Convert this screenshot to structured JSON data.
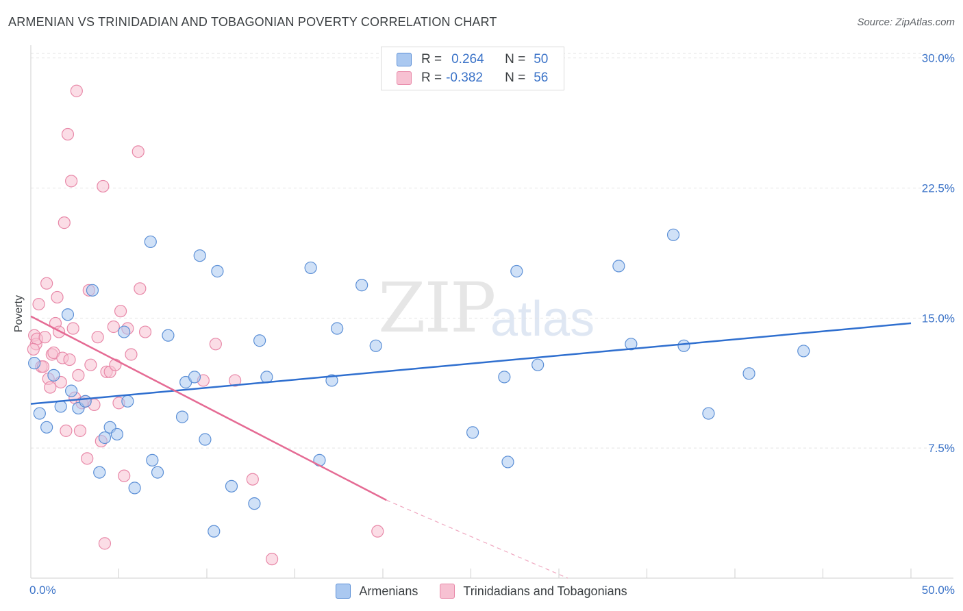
{
  "header": {
    "title": "ARMENIAN VS TRINIDADIAN AND TOBAGONIAN POVERTY CORRELATION CHART",
    "source": "Source: ZipAtlas.com"
  },
  "watermark": {
    "zip": "ZIP",
    "atlas": "atlas"
  },
  "legend": {
    "rows": [
      {
        "r_label": "R =",
        "r_value": "0.264",
        "n_label": "N =",
        "n_value": "50"
      },
      {
        "r_label": "R =",
        "r_value": "-0.382",
        "n_label": "N =",
        "n_value": "56"
      }
    ]
  },
  "bottom_legend": {
    "items": [
      {
        "label": "Armenians"
      },
      {
        "label": "Trinidadians and Tobagonians"
      }
    ]
  },
  "chart_data": {
    "type": "scatter",
    "title": "ARMENIAN VS TRINIDADIAN AND TOBAGONIAN POVERTY CORRELATION CHART",
    "xlabel": "",
    "ylabel": "Poverty",
    "xlim": [
      0,
      50
    ],
    "ylim": [
      0,
      30.5
    ],
    "x_tick_labels": [
      "0.0%",
      "50.0%"
    ],
    "y_ticks": [
      7.5,
      15.0,
      22.5,
      30.0
    ],
    "y_tick_labels": [
      "7.5%",
      "15.0%",
      "22.5%",
      "30.0%"
    ],
    "legend_position": "top-center",
    "colors": {
      "armenians_fill": "#aac8f0",
      "armenians_stroke": "#5b8fd6",
      "armenians_line": "#2f6fcf",
      "trinidad_fill": "#f7c1d2",
      "trinidad_stroke": "#e888a8",
      "trinidad_line": "#e56b94",
      "tick_text": "#3b73c8"
    },
    "series": [
      {
        "name": "Armenians",
        "r": 0.264,
        "n": 50,
        "trend": {
          "x": [
            0,
            50
          ],
          "y": [
            10.05,
            14.7
          ]
        },
        "points": [
          [
            0.2,
            12.4
          ],
          [
            0.5,
            9.5
          ],
          [
            0.9,
            8.7
          ],
          [
            1.3,
            11.7
          ],
          [
            1.7,
            9.9
          ],
          [
            2.1,
            15.2
          ],
          [
            2.3,
            10.8
          ],
          [
            2.7,
            9.8
          ],
          [
            3.1,
            10.2
          ],
          [
            3.5,
            16.6
          ],
          [
            3.9,
            6.1
          ],
          [
            4.2,
            8.1
          ],
          [
            4.5,
            8.7
          ],
          [
            4.9,
            8.3
          ],
          [
            5.3,
            14.2
          ],
          [
            5.5,
            10.2
          ],
          [
            5.9,
            5.2
          ],
          [
            6.8,
            19.4
          ],
          [
            6.9,
            6.8
          ],
          [
            7.2,
            6.1
          ],
          [
            7.8,
            14.0
          ],
          [
            8.6,
            9.3
          ],
          [
            8.8,
            11.3
          ],
          [
            9.3,
            11.6
          ],
          [
            9.6,
            18.6
          ],
          [
            9.9,
            8.0
          ],
          [
            10.4,
            2.7
          ],
          [
            10.6,
            17.7
          ],
          [
            11.4,
            5.3
          ],
          [
            12.7,
            4.3
          ],
          [
            13.0,
            13.7
          ],
          [
            13.4,
            11.6
          ],
          [
            15.9,
            17.9
          ],
          [
            16.4,
            6.8
          ],
          [
            17.1,
            11.4
          ],
          [
            17.4,
            14.4
          ],
          [
            18.8,
            16.9
          ],
          [
            19.6,
            13.4
          ],
          [
            25.1,
            8.4
          ],
          [
            26.9,
            11.6
          ],
          [
            27.1,
            6.7
          ],
          [
            27.6,
            17.7
          ],
          [
            28.8,
            12.3
          ],
          [
            33.4,
            18.0
          ],
          [
            34.1,
            13.5
          ],
          [
            36.5,
            19.8
          ],
          [
            37.1,
            13.4
          ],
          [
            38.5,
            9.5
          ],
          [
            40.8,
            11.8
          ],
          [
            43.9,
            13.1
          ]
        ]
      },
      {
        "name": "Trinidadians and Tobagonians",
        "r": -0.382,
        "n": 56,
        "trend": {
          "x": [
            0,
            20.2
          ],
          "y": [
            15.1,
            4.5
          ],
          "dashed_to": {
            "x": 30.5,
            "y": -0.4
          }
        },
        "points": [
          [
            0.2,
            14.0
          ],
          [
            0.3,
            13.5
          ],
          [
            0.35,
            13.8
          ],
          [
            0.45,
            15.8
          ],
          [
            0.6,
            12.2
          ],
          [
            0.8,
            13.9
          ],
          [
            0.9,
            17.0
          ],
          [
            1.0,
            11.5
          ],
          [
            1.1,
            11.0
          ],
          [
            1.2,
            12.9
          ],
          [
            1.3,
            13.0
          ],
          [
            1.4,
            14.7
          ],
          [
            1.5,
            16.2
          ],
          [
            1.6,
            14.2
          ],
          [
            1.7,
            11.3
          ],
          [
            1.8,
            12.7
          ],
          [
            1.9,
            20.5
          ],
          [
            2.0,
            8.5
          ],
          [
            2.1,
            25.6
          ],
          [
            2.2,
            12.6
          ],
          [
            2.3,
            22.9
          ],
          [
            2.4,
            14.4
          ],
          [
            2.5,
            10.4
          ],
          [
            2.6,
            28.1
          ],
          [
            2.7,
            11.7
          ],
          [
            2.8,
            8.5
          ],
          [
            2.9,
            10.1
          ],
          [
            3.1,
            10.2
          ],
          [
            3.2,
            6.9
          ],
          [
            3.3,
            16.6
          ],
          [
            3.4,
            12.3
          ],
          [
            3.6,
            10.0
          ],
          [
            3.8,
            13.9
          ],
          [
            4.0,
            7.9
          ],
          [
            4.1,
            22.6
          ],
          [
            4.2,
            2.0
          ],
          [
            4.3,
            11.9
          ],
          [
            4.5,
            11.9
          ],
          [
            4.7,
            14.5
          ],
          [
            4.8,
            12.3
          ],
          [
            5.0,
            10.1
          ],
          [
            5.1,
            15.4
          ],
          [
            5.3,
            5.9
          ],
          [
            5.5,
            14.4
          ],
          [
            5.7,
            12.9
          ],
          [
            6.1,
            24.6
          ],
          [
            6.2,
            16.7
          ],
          [
            6.5,
            14.2
          ],
          [
            9.8,
            11.4
          ],
          [
            10.5,
            13.5
          ],
          [
            11.6,
            11.4
          ],
          [
            12.6,
            5.7
          ],
          [
            13.7,
            1.1
          ],
          [
            19.7,
            2.7
          ],
          [
            0.15,
            13.2
          ],
          [
            0.7,
            12.2
          ]
        ]
      }
    ]
  }
}
